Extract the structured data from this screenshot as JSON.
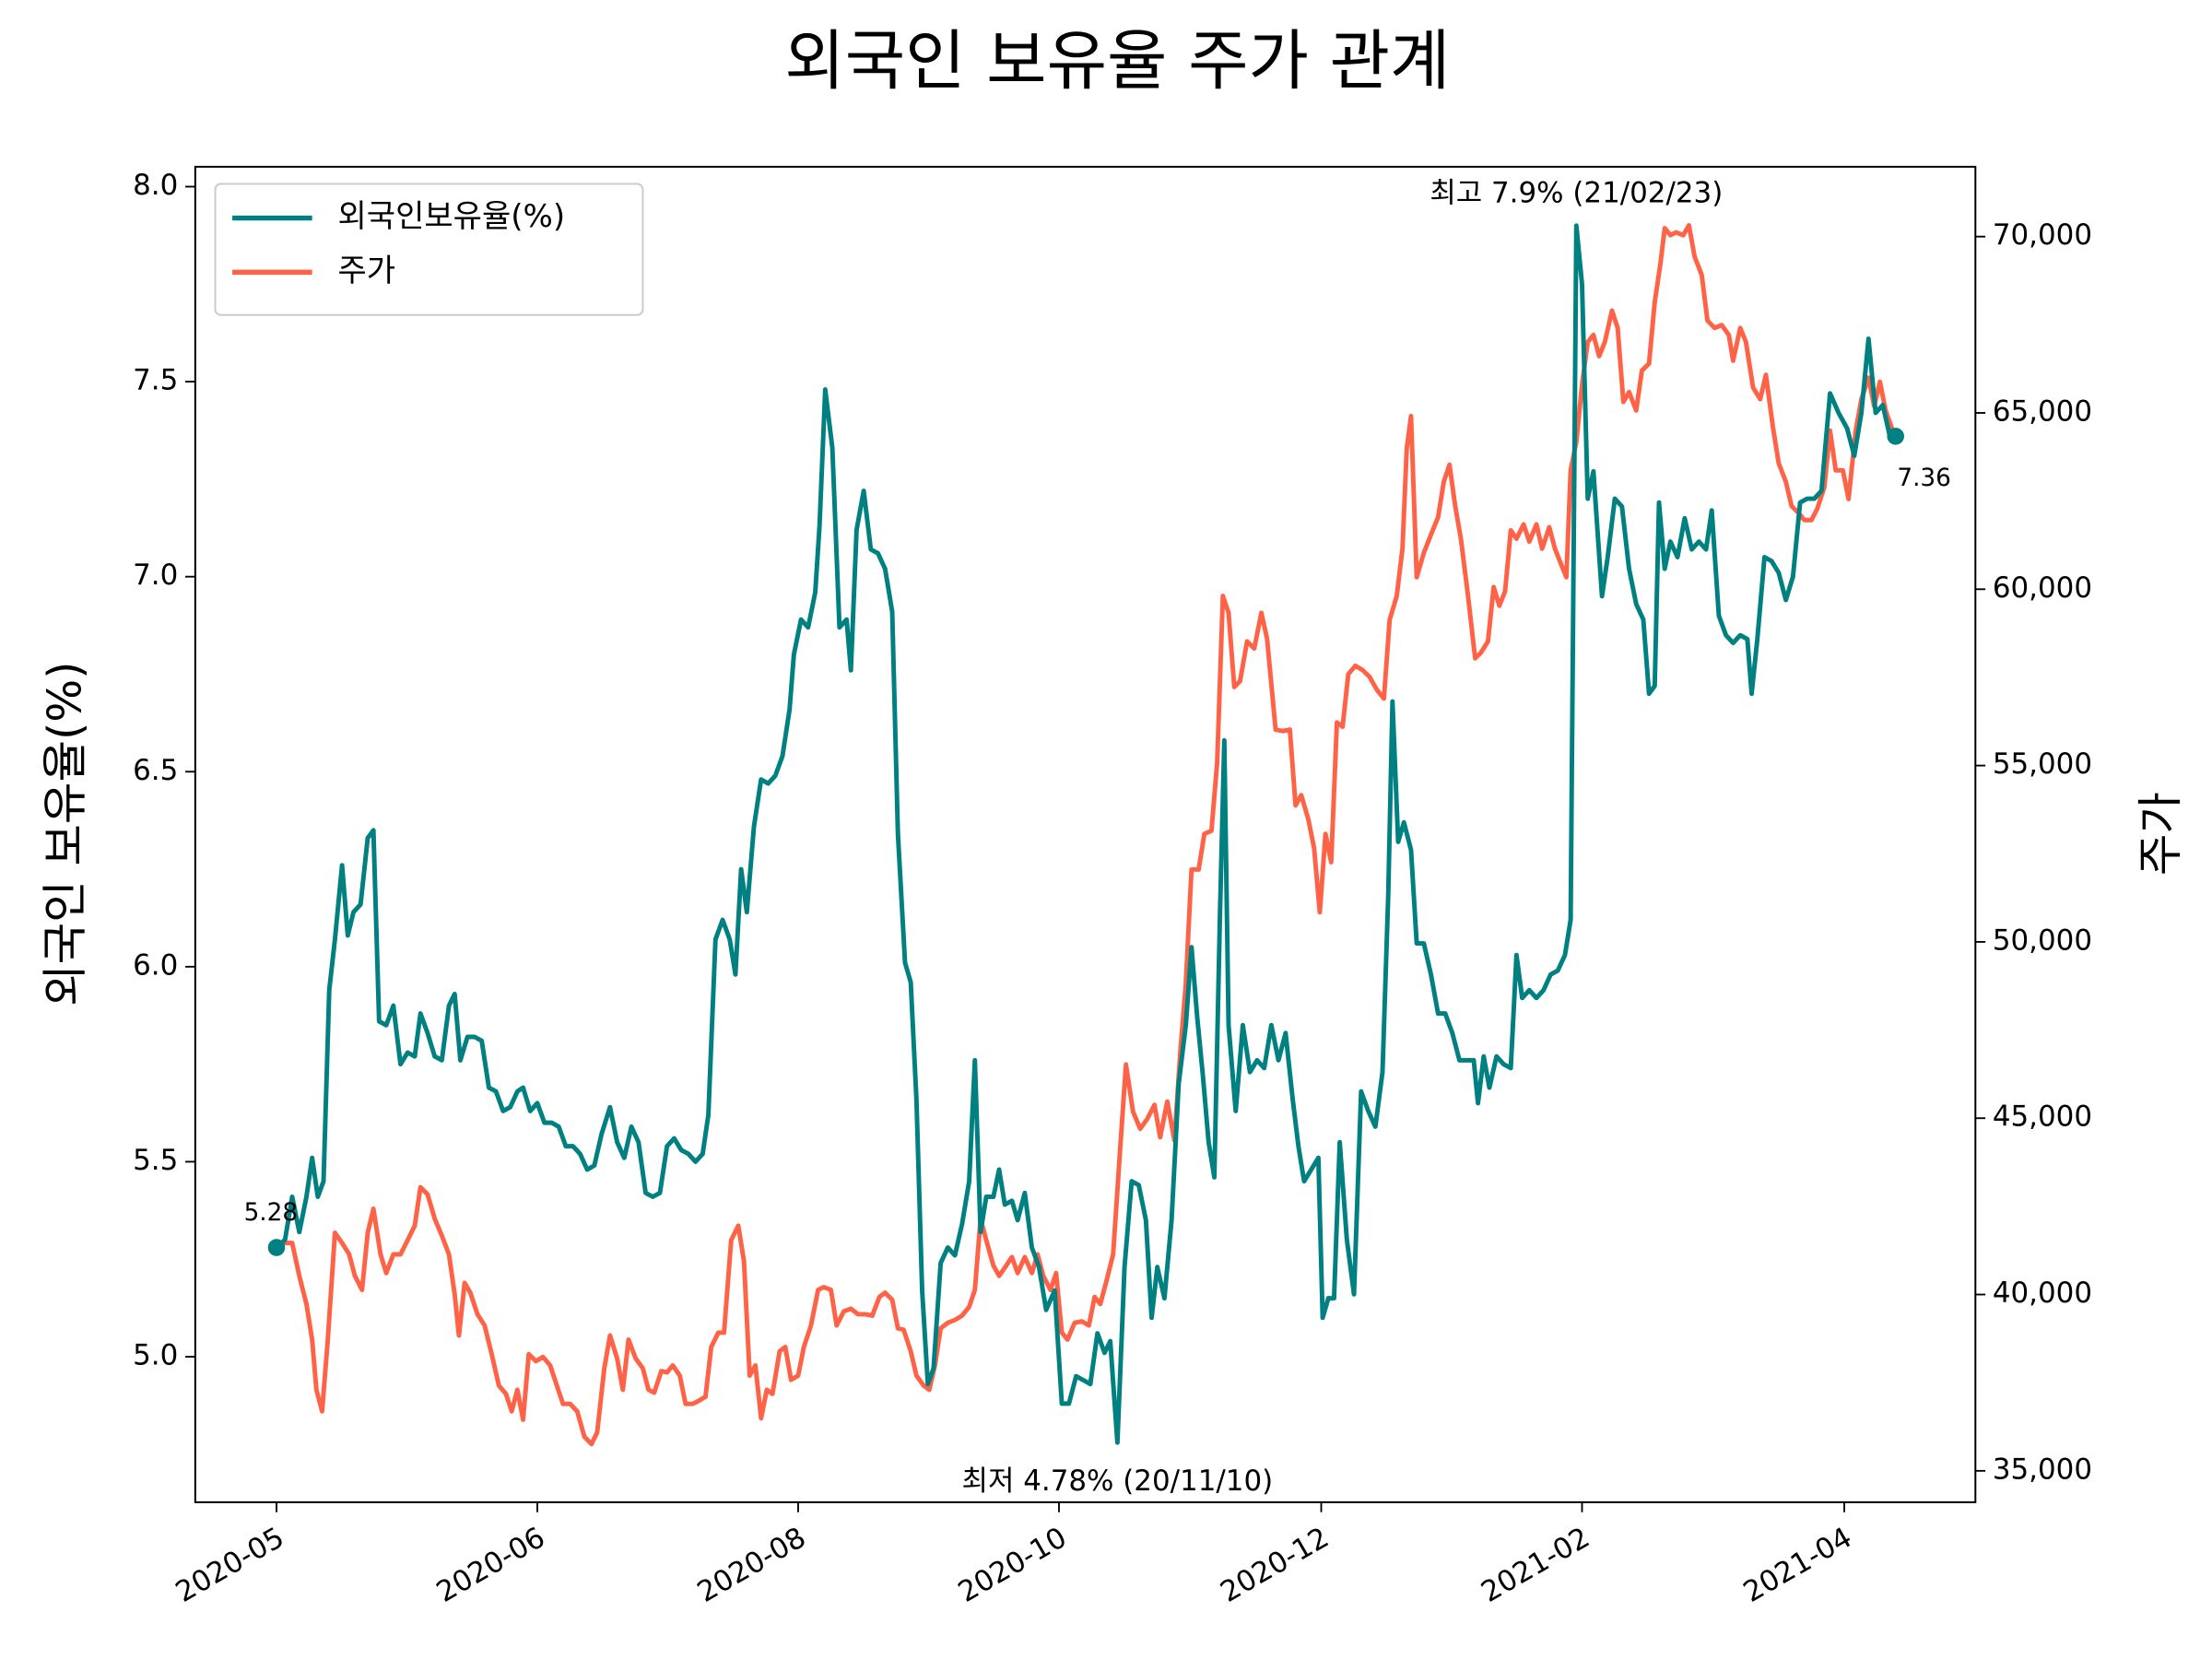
{
  "chart_data": {
    "type": "line",
    "title": "외국인 보유율 주가 관계",
    "ylabel": "외국인 보유율(%)",
    "y2label": "주가",
    "legend": "upper left",
    "xlim": [
      -57,
      1192
    ],
    "xticks": [
      {
        "value": 0,
        "label": "2020-05"
      },
      {
        "value": 183,
        "label": "2020-06"
      },
      {
        "value": 366,
        "label": "2020-08"
      },
      {
        "value": 549,
        "label": "2020-10"
      },
      {
        "value": 733,
        "label": "2020-12"
      },
      {
        "value": 916,
        "label": "2021-02"
      },
      {
        "value": 1100,
        "label": "2021-04"
      }
    ],
    "ylim": [
      4.627,
      8.051
    ],
    "yticks": [
      {
        "value": 5,
        "label": "5.0"
      },
      5.5,
      {
        "value": 6,
        "label": "6.0"
      },
      6.5,
      {
        "value": 7,
        "label": "7.0"
      },
      7.5,
      {
        "value": 8,
        "label": "8.0"
      }
    ],
    "y2lim": [
      34110,
      71980
    ],
    "y2ticks": [
      {
        "value": 35000,
        "label": "35,000"
      },
      {
        "value": 40000,
        "label": "40,000"
      },
      {
        "value": 45000,
        "label": "45,000"
      },
      {
        "value": 50000,
        "label": "50,000"
      },
      {
        "value": 55000,
        "label": "55,000"
      },
      {
        "value": 60000,
        "label": "60,000"
      },
      {
        "value": 65000,
        "label": "65,000"
      },
      {
        "value": 70000,
        "label": "70,000"
      }
    ],
    "max_label": "최고 7.9% (21/02/23)",
    "max_color": "#ff0000",
    "min_label": "최저 4.78% (20/11/10)",
    "min_color": "#0000ff",
    "end_labels": [
      "5.28",
      "7.36"
    ],
    "series": [
      {
        "name": "외국인보유율(%)",
        "color": "#008080",
        "x": [
          0,
          6,
          11,
          16,
          21,
          25,
          29,
          33,
          37,
          41,
          46,
          50,
          54,
          59,
          64,
          68,
          72,
          77,
          82,
          87,
          92,
          97,
          101,
          106,
          111,
          116,
          121,
          125,
          129,
          134,
          139,
          144,
          149,
          154,
          159,
          164,
          169,
          173,
          178,
          183,
          188,
          193,
          198,
          203,
          208,
          213,
          218,
          223,
          228,
          234,
          239,
          244,
          249,
          254,
          259,
          264,
          269,
          274,
          279,
          284,
          289,
          294,
          299,
          303,
          308,
          313,
          318,
          322,
          326,
          330,
          335,
          340,
          345,
          350,
          355,
          360,
          363,
          368,
          373,
          378,
          381,
          385,
          390,
          395,
          400,
          403,
          407,
          412,
          417,
          422,
          427,
          432,
          436,
          441,
          445,
          449,
          453,
          457,
          461,
          466,
          471,
          476,
          481,
          486,
          490,
          494,
          498,
          503,
          507,
          511,
          516,
          520,
          525,
          530,
          535,
          540,
          546,
          551,
          556,
          561,
          566,
          571,
          576,
          581,
          585,
          590,
          595,
          600,
          605,
          610,
          614,
          618,
          623,
          628,
          633,
          638,
          642,
          646,
          650,
          654,
          658,
          662,
          665,
          668,
          673,
          678,
          683,
          688,
          693,
          698,
          703,
          708,
          713,
          717,
          721,
          726,
          731,
          734,
          738,
          742,
          746,
          751,
          756,
          761,
          766,
          771,
          776,
          780,
          783,
          787,
          791,
          796,
          800,
          805,
          810,
          815,
          820,
          825,
          830,
          835,
          840,
          843,
          847,
          851,
          856,
          861,
          866,
          870,
          874,
          879,
          884,
          889,
          894,
          899,
          904,
          908,
          912,
          916,
          920,
          924,
          930,
          934,
          939,
          944,
          949,
          954,
          959,
          963,
          967,
          970,
          974,
          978,
          983,
          988,
          993,
          998,
          1003,
          1007,
          1012,
          1017,
          1022,
          1027,
          1032,
          1035,
          1039,
          1044,
          1049,
          1054,
          1059,
          1064,
          1069,
          1074,
          1079,
          1084,
          1090,
          1096,
          1102,
          1107,
          1112,
          1117,
          1122,
          1127,
          1132,
          1136
        ],
        "values": [
          5.28,
          5.3,
          5.41,
          5.32,
          5.41,
          5.51,
          5.41,
          5.45,
          5.94,
          6.07,
          6.26,
          6.08,
          6.14,
          6.16,
          6.33,
          6.35,
          5.86,
          5.85,
          5.9,
          5.75,
          5.78,
          5.77,
          5.88,
          5.83,
          5.77,
          5.76,
          5.9,
          5.93,
          5.76,
          5.82,
          5.82,
          5.81,
          5.69,
          5.68,
          5.63,
          5.64,
          5.68,
          5.69,
          5.63,
          5.65,
          5.6,
          5.6,
          5.59,
          5.54,
          5.54,
          5.52,
          5.48,
          5.49,
          5.57,
          5.64,
          5.55,
          5.51,
          5.59,
          5.55,
          5.42,
          5.41,
          5.42,
          5.54,
          5.56,
          5.53,
          5.52,
          5.5,
          5.52,
          5.62,
          6.07,
          6.12,
          6.07,
          5.98,
          6.25,
          6.14,
          6.36,
          6.48,
          6.47,
          6.49,
          6.54,
          6.66,
          6.8,
          6.89,
          6.87,
          6.96,
          7.13,
          7.48,
          7.33,
          6.87,
          6.89,
          6.76,
          7.12,
          7.22,
          7.07,
          7.06,
          7.02,
          6.91,
          6.34,
          6.01,
          5.96,
          5.66,
          5.17,
          4.93,
          4.97,
          5.24,
          5.28,
          5.26,
          5.34,
          5.45,
          5.76,
          5.32,
          5.41,
          5.41,
          5.48,
          5.39,
          5.4,
          5.35,
          5.42,
          5.28,
          5.23,
          5.12,
          5.17,
          4.88,
          4.88,
          4.95,
          4.94,
          4.93,
          5.06,
          5.01,
          5.04,
          4.78,
          5.23,
          5.45,
          5.44,
          5.35,
          5.1,
          5.23,
          5.15,
          5.35,
          5.7,
          5.85,
          6.05,
          5.87,
          5.72,
          5.55,
          5.46,
          6.14,
          6.58,
          5.85,
          5.63,
          5.85,
          5.73,
          5.76,
          5.74,
          5.85,
          5.76,
          5.83,
          5.66,
          5.54,
          5.45,
          5.48,
          5.51,
          5.1,
          5.15,
          5.15,
          5.55,
          5.3,
          5.16,
          5.68,
          5.63,
          5.59,
          5.73,
          6.18,
          6.68,
          6.32,
          6.37,
          6.3,
          6.06,
          6.06,
          5.98,
          5.88,
          5.88,
          5.83,
          5.76,
          5.76,
          5.76,
          5.65,
          5.77,
          5.69,
          5.77,
          5.75,
          5.74,
          6.03,
          5.92,
          5.94,
          5.92,
          5.94,
          5.98,
          5.99,
          6.03,
          6.12,
          7.9,
          7.75,
          7.2,
          7.27,
          6.95,
          7.05,
          7.2,
          7.18,
          7.02,
          6.93,
          6.89,
          6.7,
          6.72,
          7.19,
          7.02,
          7.09,
          7.05,
          7.15,
          7.07,
          7.09,
          7.07,
          7.17,
          6.9,
          6.85,
          6.83,
          6.85,
          6.84,
          6.7,
          6.84,
          7.05,
          7.04,
          7.01,
          6.94,
          7.0,
          7.19,
          7.2,
          7.2,
          7.22,
          7.47,
          7.42,
          7.38,
          7.31,
          7.42,
          7.61,
          7.42,
          7.44,
          7.36,
          7.36
        ]
      },
      {
        "name": "주가",
        "color": "#ff6347",
        "axis": "y2",
        "x": [
          0,
          6,
          11,
          16,
          21,
          25,
          28,
          32,
          36,
          41,
          46,
          51,
          55,
          60,
          64,
          68,
          73,
          77,
          82,
          87,
          92,
          97,
          101,
          106,
          111,
          116,
          121,
          125,
          128,
          132,
          136,
          141,
          146,
          151,
          156,
          161,
          165,
          169,
          173,
          177,
          182,
          187,
          192,
          196,
          201,
          206,
          211,
          216,
          221,
          225,
          230,
          234,
          239,
          243,
          247,
          252,
          257,
          261,
          265,
          270,
          274,
          278,
          283,
          287,
          292,
          296,
          301,
          305,
          310,
          314,
          319,
          324,
          328,
          332,
          336,
          340,
          344,
          348,
          353,
          357,
          361,
          366,
          370,
          375,
          380,
          384,
          389,
          393,
          398,
          403,
          408,
          413,
          418,
          423,
          427,
          432,
          436,
          440,
          445,
          449,
          454,
          458,
          462,
          466,
          471,
          476,
          481,
          486,
          490,
          494,
          498,
          503,
          507,
          512,
          516,
          520,
          525,
          530,
          534,
          538,
          543,
          547,
          551,
          555,
          560,
          565,
          570,
          574,
          578,
          582,
          587,
          592,
          596,
          601,
          606,
          611,
          616,
          620,
          625,
          630,
          634,
          638,
          642,
          647,
          651,
          656,
          660,
          664,
          668,
          672,
          676,
          681,
          686,
          691,
          695,
          701,
          706,
          711,
          715,
          719,
          724,
          728,
          732,
          736,
          740,
          744,
          748,
          752,
          757,
          762,
          767,
          772,
          777,
          781,
          786,
          790,
          793,
          796,
          800,
          805,
          810,
          815,
          819,
          823,
          827,
          831,
          836,
          841,
          845,
          850,
          854,
          858,
          862,
          866,
          870,
          875,
          879,
          884,
          888,
          893,
          897,
          901,
          905,
          908,
          912,
          916,
          920,
          924,
          928,
          932,
          937,
          941,
          945,
          949,
          954,
          958,
          963,
          967,
          971,
          974,
          978,
          982,
          987,
          991,
          995,
          1000,
          1004,
          1009,
          1014,
          1019,
          1022,
          1027,
          1031,
          1036,
          1041,
          1045,
          1050,
          1054,
          1059,
          1063,
          1068,
          1072,
          1077,
          1081,
          1086,
          1090,
          1094,
          1099,
          1103,
          1108,
          1112,
          1117,
          1121,
          1125,
          1129,
          1134,
          1136
        ],
        "values": [
          41340,
          41460,
          41460,
          40530,
          39730,
          38720,
          37300,
          36690,
          38720,
          41750,
          41460,
          41140,
          40530,
          40130,
          41750,
          42430,
          41140,
          40610,
          41140,
          41140,
          41540,
          41950,
          43040,
          42840,
          42150,
          41670,
          41140,
          40010,
          38840,
          40330,
          40050,
          39440,
          39120,
          38310,
          37420,
          37180,
          36690,
          37300,
          36450,
          38310,
          38110,
          38230,
          37990,
          37500,
          36900,
          36900,
          36690,
          35970,
          35760,
          36090,
          37910,
          38840,
          38190,
          37300,
          38720,
          38190,
          37910,
          37300,
          37220,
          37830,
          37790,
          37990,
          37700,
          36900,
          36900,
          36980,
          37100,
          38510,
          38920,
          38920,
          41540,
          41950,
          40940,
          37700,
          37990,
          36490,
          37300,
          37180,
          38390,
          38510,
          37580,
          37700,
          38510,
          39120,
          40130,
          40210,
          40130,
          39120,
          39520,
          39600,
          39440,
          39440,
          39400,
          39930,
          40050,
          39850,
          39040,
          39000,
          38390,
          37700,
          37420,
          37300,
          37990,
          39040,
          39200,
          39280,
          39400,
          39650,
          40130,
          42150,
          41540,
          40820,
          40530,
          40820,
          41060,
          40610,
          41060,
          40610,
          41140,
          40530,
          40130,
          40610,
          38920,
          38720,
          39200,
          39240,
          39120,
          39930,
          39730,
          40330,
          41140,
          44170,
          46520,
          45180,
          44700,
          44980,
          45380,
          44460,
          45470,
          44370,
          46800,
          48820,
          52050,
          52050,
          53060,
          53150,
          55090,
          59810,
          59330,
          57230,
          57390,
          58520,
          58320,
          59330,
          58600,
          56020,
          55980,
          56020,
          53870,
          54160,
          53470,
          52660,
          50840,
          53060,
          52260,
          56220,
          56100,
          57590,
          57830,
          57710,
          57510,
          57150,
          56900,
          59130,
          59810,
          61150,
          63980,
          64910,
          60340,
          61030,
          61550,
          62040,
          63050,
          63530,
          62360,
          61430,
          59810,
          58040,
          58200,
          58520,
          60060,
          59530,
          59940,
          61670,
          61430,
          61840,
          61350,
          61840,
          61150,
          61760,
          61150,
          60740,
          60340,
          63370,
          64180,
          65800,
          67010,
          67210,
          66610,
          67010,
          67900,
          67410,
          65310,
          65590,
          65070,
          66200,
          66400,
          68140,
          69230,
          70240,
          70040,
          70120,
          70040,
          70320,
          69430,
          68910,
          67620,
          67410,
          67490,
          67210,
          66480,
          67410,
          67010,
          65720,
          65390,
          66080,
          64580,
          63570,
          63050,
          62360,
          62160,
          61960,
          61960,
          62280,
          62890,
          64500,
          63370,
          63370,
          62560,
          64500,
          65390,
          66000,
          65190,
          65880,
          65070,
          64500,
          64380
        ]
      }
    ]
  }
}
